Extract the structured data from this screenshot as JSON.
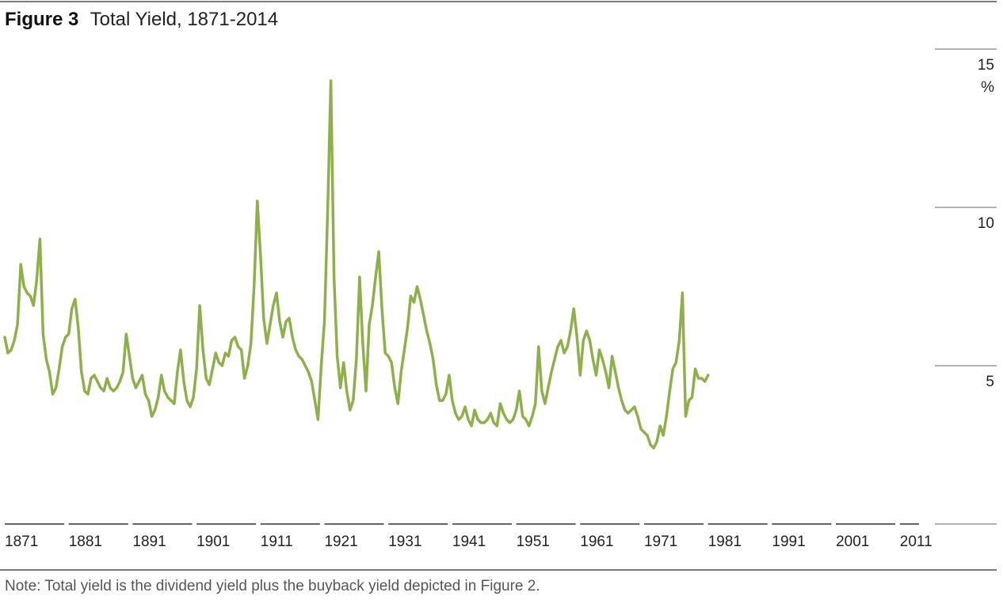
{
  "figure_label": "Figure 3",
  "note": "Note: Total yield is the dividend yield plus the buyback yield depicted in Figure 2.",
  "chart_data": {
    "type": "line",
    "title": "Total Yield, 1871-2014",
    "xlabel": "",
    "ylabel": "",
    "y_unit": "%",
    "xlim": [
      1871,
      2014
    ],
    "ylim": [
      0,
      15
    ],
    "y_ticks": [
      5,
      10,
      15
    ],
    "x_tick_labels": [
      "1871",
      "1881",
      "1891",
      "1901",
      "1911",
      "1921",
      "1931",
      "1941",
      "1951",
      "1961",
      "1971",
      "1981",
      "1991",
      "2001",
      "2011"
    ],
    "grid": false,
    "color": "#8db04a",
    "series": [
      {
        "values": [
          [
            1871,
            5.9
          ],
          [
            1871.5,
            5.4
          ],
          [
            1872,
            5.5
          ],
          [
            1872.5,
            5.8
          ],
          [
            1873,
            6.3
          ],
          [
            1873.5,
            8.2
          ],
          [
            1874,
            7.5
          ],
          [
            1874.5,
            7.3
          ],
          [
            1875,
            7.2
          ],
          [
            1875.5,
            6.9
          ],
          [
            1876,
            7.7
          ],
          [
            1876.5,
            9.0
          ],
          [
            1877,
            6.0
          ],
          [
            1877.5,
            5.2
          ],
          [
            1878,
            4.8
          ],
          [
            1878.5,
            4.1
          ],
          [
            1879,
            4.3
          ],
          [
            1879.5,
            4.9
          ],
          [
            1880,
            5.6
          ],
          [
            1880.5,
            5.9
          ],
          [
            1881,
            6.0
          ],
          [
            1881.5,
            6.8
          ],
          [
            1882,
            7.1
          ],
          [
            1882.5,
            6.2
          ],
          [
            1883,
            4.8
          ],
          [
            1883.5,
            4.2
          ],
          [
            1884,
            4.1
          ],
          [
            1884.5,
            4.6
          ],
          [
            1885,
            4.7
          ],
          [
            1885.5,
            4.5
          ],
          [
            1886,
            4.3
          ],
          [
            1886.5,
            4.2
          ],
          [
            1887,
            4.6
          ],
          [
            1887.5,
            4.3
          ],
          [
            1888,
            4.2
          ],
          [
            1888.5,
            4.3
          ],
          [
            1889,
            4.5
          ],
          [
            1889.5,
            4.8
          ],
          [
            1890,
            6.0
          ],
          [
            1890.5,
            5.3
          ],
          [
            1891,
            4.6
          ],
          [
            1891.5,
            4.3
          ],
          [
            1892,
            4.5
          ],
          [
            1892.5,
            4.7
          ],
          [
            1893,
            4.1
          ],
          [
            1893.5,
            3.9
          ],
          [
            1894,
            3.4
          ],
          [
            1894.5,
            3.6
          ],
          [
            1895,
            4.0
          ],
          [
            1895.5,
            4.7
          ],
          [
            1896,
            4.2
          ],
          [
            1896.5,
            4.0
          ],
          [
            1897,
            3.9
          ],
          [
            1897.5,
            3.8
          ],
          [
            1898,
            4.8
          ],
          [
            1898.5,
            5.5
          ],
          [
            1899,
            4.5
          ],
          [
            1899.5,
            3.9
          ],
          [
            1900,
            3.7
          ],
          [
            1900.5,
            4.0
          ],
          [
            1901,
            4.9
          ],
          [
            1901.5,
            6.9
          ],
          [
            1902,
            5.5
          ],
          [
            1902.5,
            4.6
          ],
          [
            1903,
            4.4
          ],
          [
            1903.5,
            4.9
          ],
          [
            1904,
            5.4
          ],
          [
            1904.5,
            5.1
          ],
          [
            1905,
            5.0
          ],
          [
            1905.5,
            5.4
          ],
          [
            1906,
            5.3
          ],
          [
            1906.5,
            5.8
          ],
          [
            1907,
            5.9
          ],
          [
            1907.5,
            5.6
          ],
          [
            1908,
            5.5
          ],
          [
            1908.5,
            4.6
          ],
          [
            1909,
            5.0
          ],
          [
            1909.5,
            5.7
          ],
          [
            1910,
            7.5
          ],
          [
            1910.5,
            10.2
          ],
          [
            1911,
            8.5
          ],
          [
            1911.5,
            6.5
          ],
          [
            1912,
            5.7
          ],
          [
            1912.5,
            6.3
          ],
          [
            1913,
            6.9
          ],
          [
            1913.5,
            7.3
          ],
          [
            1914,
            6.4
          ],
          [
            1914.5,
            5.9
          ],
          [
            1915,
            6.4
          ],
          [
            1915.5,
            6.5
          ],
          [
            1916,
            5.9
          ],
          [
            1916.5,
            5.5
          ],
          [
            1917,
            5.3
          ],
          [
            1917.5,
            5.2
          ],
          [
            1918,
            5.0
          ],
          [
            1918.5,
            4.8
          ],
          [
            1919,
            4.5
          ],
          [
            1919.5,
            3.9
          ],
          [
            1920,
            3.3
          ],
          [
            1920.5,
            5.0
          ],
          [
            1921,
            6.4
          ],
          [
            1921.5,
            9.8
          ],
          [
            1922,
            14.0
          ],
          [
            1922.5,
            7.8
          ],
          [
            1923,
            5.3
          ],
          [
            1923.5,
            4.3
          ],
          [
            1924,
            5.1
          ],
          [
            1924.5,
            4.2
          ],
          [
            1925,
            3.6
          ],
          [
            1925.5,
            3.9
          ],
          [
            1926,
            5.2
          ],
          [
            1926.5,
            7.8
          ],
          [
            1927,
            5.7
          ],
          [
            1927.5,
            4.2
          ],
          [
            1928,
            6.3
          ],
          [
            1928.5,
            6.9
          ],
          [
            1929,
            7.8
          ],
          [
            1929.5,
            8.6
          ],
          [
            1930,
            6.8
          ],
          [
            1930.5,
            5.4
          ],
          [
            1931,
            5.3
          ],
          [
            1931.5,
            5.1
          ],
          [
            1932,
            4.3
          ],
          [
            1932.5,
            3.8
          ],
          [
            1933,
            4.8
          ],
          [
            1933.5,
            5.5
          ],
          [
            1934,
            6.2
          ],
          [
            1934.5,
            7.2
          ],
          [
            1935,
            7.0
          ],
          [
            1935.5,
            7.5
          ],
          [
            1936,
            7.1
          ],
          [
            1936.5,
            6.6
          ],
          [
            1937,
            6.1
          ],
          [
            1937.5,
            5.7
          ],
          [
            1938,
            5.2
          ],
          [
            1938.5,
            4.4
          ],
          [
            1939,
            3.9
          ],
          [
            1939.5,
            3.9
          ],
          [
            1940,
            4.1
          ],
          [
            1940.5,
            4.7
          ],
          [
            1941,
            3.9
          ],
          [
            1941.5,
            3.5
          ],
          [
            1942,
            3.3
          ],
          [
            1942.5,
            3.4
          ],
          [
            1943,
            3.7
          ],
          [
            1943.5,
            3.3
          ],
          [
            1944,
            3.1
          ],
          [
            1944.5,
            3.6
          ],
          [
            1945,
            3.3
          ],
          [
            1945.5,
            3.2
          ],
          [
            1946,
            3.2
          ],
          [
            1946.5,
            3.3
          ],
          [
            1947,
            3.5
          ],
          [
            1947.5,
            3.2
          ],
          [
            1948,
            3.1
          ],
          [
            1948.5,
            3.8
          ],
          [
            1949,
            3.5
          ],
          [
            1949.5,
            3.3
          ],
          [
            1950,
            3.2
          ],
          [
            1950.5,
            3.3
          ],
          [
            1951,
            3.6
          ],
          [
            1951.5,
            4.2
          ],
          [
            1952,
            3.4
          ],
          [
            1952.5,
            3.3
          ],
          [
            1953,
            3.1
          ],
          [
            1953.5,
            3.4
          ],
          [
            1954,
            3.8
          ],
          [
            1954.5,
            5.6
          ],
          [
            1955,
            4.2
          ],
          [
            1955.5,
            3.8
          ],
          [
            1956,
            4.3
          ],
          [
            1956.5,
            4.8
          ],
          [
            1957,
            5.2
          ],
          [
            1957.5,
            5.6
          ],
          [
            1958,
            5.8
          ],
          [
            1958.5,
            5.4
          ],
          [
            1959,
            5.6
          ],
          [
            1959.5,
            6.1
          ],
          [
            1960,
            6.8
          ],
          [
            1960.5,
            5.9
          ],
          [
            1961,
            4.7
          ],
          [
            1961.5,
            5.8
          ],
          [
            1962,
            6.1
          ],
          [
            1962.5,
            5.8
          ],
          [
            1963,
            5.2
          ],
          [
            1963.5,
            4.7
          ],
          [
            1964,
            5.5
          ],
          [
            1964.5,
            5.2
          ],
          [
            1965,
            4.8
          ],
          [
            1965.5,
            4.3
          ],
          [
            1966,
            5.3
          ],
          [
            1966.5,
            4.8
          ],
          [
            1967,
            4.3
          ],
          [
            1967.5,
            3.9
          ],
          [
            1968,
            3.6
          ],
          [
            1968.5,
            3.5
          ],
          [
            1969,
            3.6
          ],
          [
            1969.5,
            3.7
          ],
          [
            1970,
            3.4
          ],
          [
            1970.5,
            3.0
          ],
          [
            1971,
            2.9
          ],
          [
            1971.5,
            2.8
          ],
          [
            1972,
            2.5
          ],
          [
            1972.5,
            2.4
          ],
          [
            1973,
            2.6
          ],
          [
            1973.5,
            3.1
          ],
          [
            1974,
            2.8
          ],
          [
            1974.5,
            3.4
          ],
          [
            1975,
            4.2
          ],
          [
            1975.5,
            4.9
          ],
          [
            1976,
            5.1
          ],
          [
            1976.5,
            5.8
          ],
          [
            1977,
            7.3
          ],
          [
            1977.5,
            3.4
          ],
          [
            1978,
            3.9
          ],
          [
            1978.5,
            4.0
          ],
          [
            1979,
            4.9
          ],
          [
            1979.5,
            4.6
          ],
          [
            1980,
            4.6
          ],
          [
            1980.5,
            4.5
          ],
          [
            1981,
            4.7
          ]
        ]
      }
    ]
  }
}
